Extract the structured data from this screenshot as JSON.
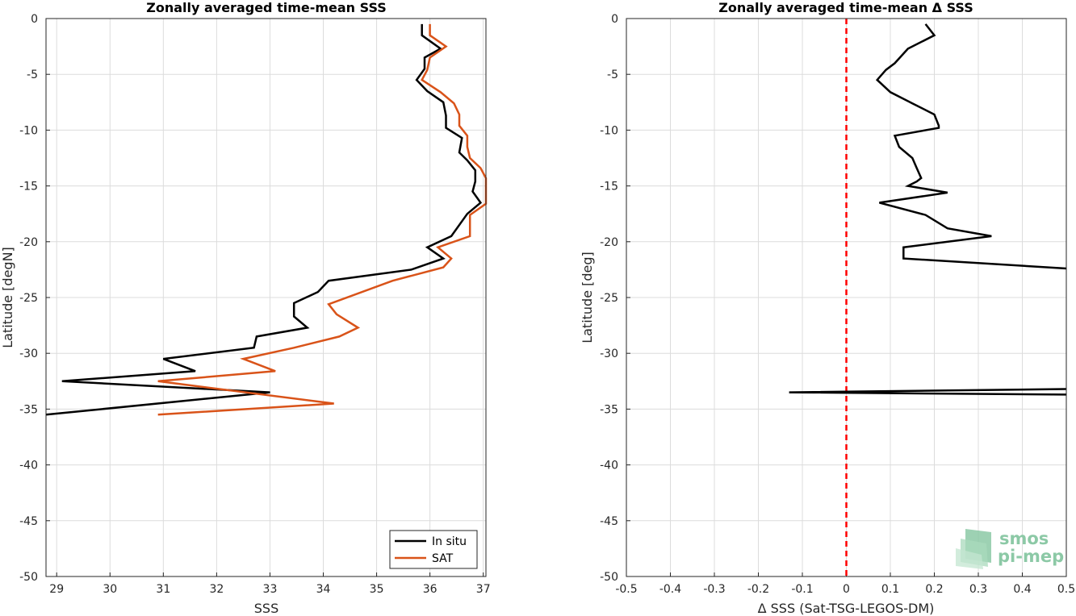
{
  "chart_data": [
    {
      "type": "line",
      "title": "Zonally averaged time-mean SSS",
      "xlabel": "SSS",
      "ylabel": "Latitude [degN]",
      "xlim": [
        28.8,
        37.05
      ],
      "ylim": [
        -50,
        0
      ],
      "xticks": [
        29,
        30,
        31,
        32,
        33,
        34,
        35,
        36,
        37
      ],
      "yticks": [
        0,
        -5,
        -10,
        -15,
        -20,
        -25,
        -30,
        -35,
        -40,
        -45,
        -50
      ],
      "grid": true,
      "legend_position": "bottom-right",
      "series": [
        {
          "name": "In situ",
          "color": "#000000",
          "points": [
            [
              35.85,
              -0.5
            ],
            [
              35.85,
              -1.5
            ],
            [
              36.2,
              -2.7
            ],
            [
              35.9,
              -3.5
            ],
            [
              35.9,
              -4.5
            ],
            [
              35.75,
              -5.5
            ],
            [
              35.95,
              -6.5
            ],
            [
              36.25,
              -7.5
            ],
            [
              36.3,
              -8.7
            ],
            [
              36.3,
              -9.8
            ],
            [
              36.6,
              -10.7
            ],
            [
              36.55,
              -12.0
            ],
            [
              36.7,
              -12.7
            ],
            [
              36.85,
              -13.6
            ],
            [
              36.85,
              -14.6
            ],
            [
              36.8,
              -15.5
            ],
            [
              36.95,
              -16.5
            ],
            [
              36.7,
              -17.5
            ],
            [
              36.4,
              -19.5
            ],
            [
              35.95,
              -20.5
            ],
            [
              36.25,
              -21.5
            ],
            [
              35.65,
              -22.5
            ],
            [
              34.1,
              -23.5
            ],
            [
              33.9,
              -24.5
            ],
            [
              33.45,
              -25.5
            ],
            [
              33.45,
              -26.7
            ],
            [
              33.7,
              -27.7
            ],
            [
              32.75,
              -28.5
            ],
            [
              32.7,
              -29.5
            ],
            [
              31.0,
              -30.5
            ],
            [
              31.6,
              -31.6
            ],
            [
              29.1,
              -32.5
            ],
            [
              33.0,
              -33.5
            ],
            [
              28.8,
              -35.5
            ]
          ]
        },
        {
          "name": "SAT",
          "color": "#d95319",
          "points": [
            [
              36.0,
              -0.5
            ],
            [
              36.0,
              -1.5
            ],
            [
              36.3,
              -2.5
            ],
            [
              36.0,
              -3.5
            ],
            [
              35.95,
              -4.6
            ],
            [
              35.85,
              -5.5
            ],
            [
              36.2,
              -6.6
            ],
            [
              36.45,
              -7.6
            ],
            [
              36.55,
              -8.6
            ],
            [
              36.55,
              -9.6
            ],
            [
              36.7,
              -10.5
            ],
            [
              36.7,
              -11.5
            ],
            [
              36.75,
              -12.5
            ],
            [
              36.95,
              -13.4
            ],
            [
              37.05,
              -14.3
            ],
            [
              37.05,
              -15.5
            ],
            [
              37.05,
              -16.6
            ],
            [
              36.75,
              -17.6
            ],
            [
              36.75,
              -19.5
            ],
            [
              36.15,
              -20.5
            ],
            [
              36.4,
              -21.5
            ],
            [
              36.25,
              -22.3
            ],
            [
              35.3,
              -23.5
            ],
            [
              34.1,
              -25.6
            ],
            [
              34.25,
              -26.5
            ],
            [
              34.65,
              -27.7
            ],
            [
              34.3,
              -28.5
            ],
            [
              33.45,
              -29.5
            ],
            [
              32.5,
              -30.5
            ],
            [
              33.1,
              -31.6
            ],
            [
              30.9,
              -32.5
            ],
            [
              34.2,
              -34.5
            ],
            [
              30.9,
              -35.5
            ]
          ]
        }
      ]
    },
    {
      "type": "line",
      "title": "Zonally averaged time-mean Δ SSS",
      "xlabel": "Δ SSS (Sat-TSG-LEGOS-DM)",
      "ylabel": "Latitude [deg]",
      "xlim": [
        -0.5,
        0.5
      ],
      "ylim": [
        -50,
        0
      ],
      "xticks": [
        -0.5,
        -0.4,
        -0.3,
        -0.2,
        -0.1,
        0,
        0.1,
        0.2,
        0.3,
        0.4,
        0.5
      ],
      "xticklabels": [
        "-0.5",
        "-0.4",
        "-0.3",
        "-0.2",
        "-0.1",
        "0",
        "0.1",
        "0.2",
        "0.3",
        "0.4",
        "0.5"
      ],
      "yticks": [
        0,
        -5,
        -10,
        -15,
        -20,
        -25,
        -30,
        -35,
        -40,
        -45,
        -50
      ],
      "grid": true,
      "reference_line": {
        "x": 0,
        "color": "#ff0000",
        "style": "dashed"
      },
      "series": [
        {
          "color": "#000000",
          "points": [
            [
              0.18,
              -0.5
            ],
            [
              0.2,
              -1.5
            ],
            [
              0.14,
              -2.7
            ],
            [
              0.11,
              -4.0
            ],
            [
              0.09,
              -4.6
            ],
            [
              0.07,
              -5.5
            ],
            [
              0.1,
              -6.6
            ],
            [
              0.15,
              -7.6
            ],
            [
              0.2,
              -8.6
            ],
            [
              0.21,
              -9.6
            ],
            [
              0.21,
              -9.8
            ],
            [
              0.11,
              -10.5
            ],
            [
              0.12,
              -11.5
            ],
            [
              0.15,
              -12.5
            ],
            [
              0.16,
              -13.4
            ],
            [
              0.17,
              -14.3
            ],
            [
              0.16,
              -14.6
            ],
            [
              0.14,
              -15.0
            ],
            [
              0.23,
              -15.6
            ],
            [
              0.075,
              -16.5
            ],
            [
              0.18,
              -17.6
            ],
            [
              0.23,
              -18.8
            ],
            [
              0.33,
              -19.5
            ],
            [
              0.13,
              -20.5
            ],
            [
              0.13,
              -21.5
            ],
            [
              0.5,
              -22.4
            ]
          ]
        },
        {
          "color": "#000000",
          "points": [
            [
              0.5,
              -33.2
            ],
            [
              -0.13,
              -33.5
            ],
            [
              0.5,
              -33.7
            ]
          ]
        }
      ]
    }
  ],
  "logo": {
    "line1": "smos",
    "line2": "pi-mep",
    "color": "#8cc9a6"
  }
}
